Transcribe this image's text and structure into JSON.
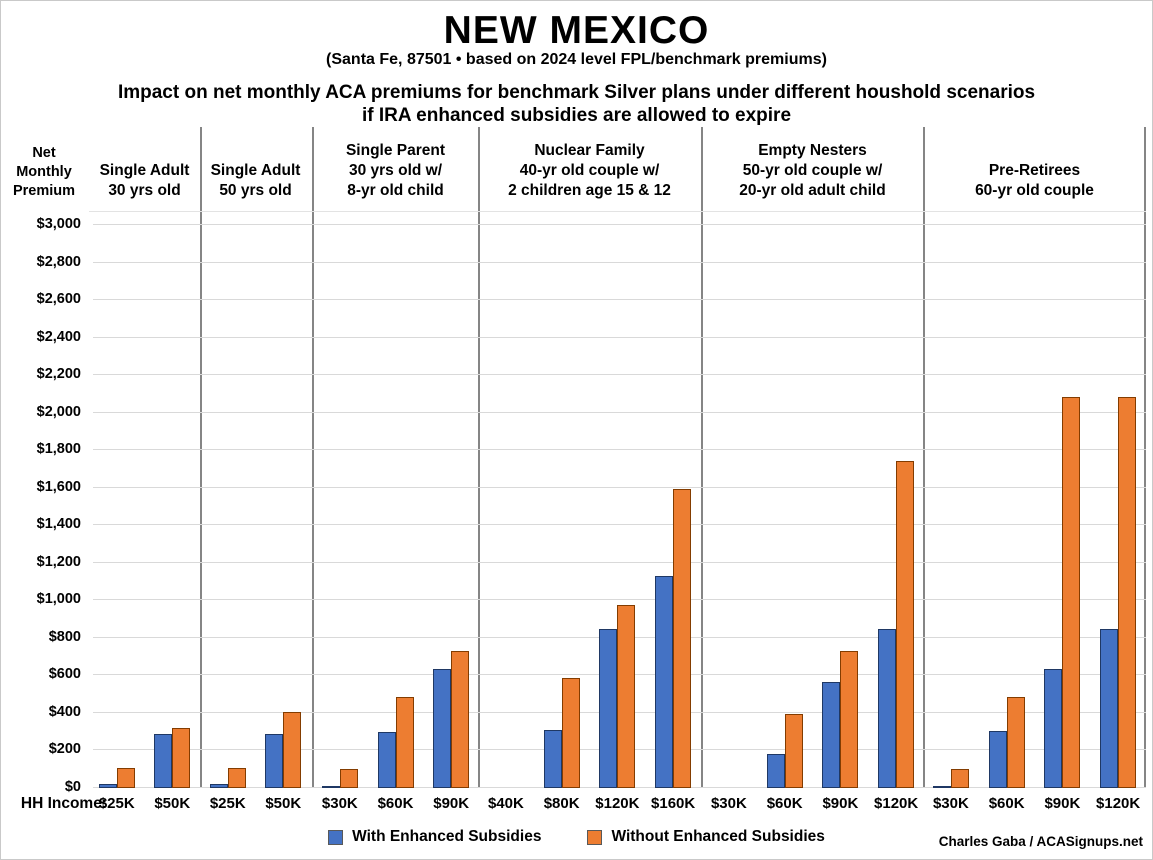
{
  "header": {
    "title": "NEW MEXICO",
    "subtitle": "(Santa Fe, 87501 • based on 2024 level FPL/benchmark premiums)",
    "heading_line1": "Impact on net monthly ACA premiums for benchmark Silver plans under different houshold scenarios",
    "heading_line2": "if IRA enhanced subsidies are allowed to expire"
  },
  "y_axis": {
    "label": "Net\nMonthly\nPremium",
    "tick_prefix": "$"
  },
  "footer": {
    "hh_income_label": "HH Income:",
    "credit": "Charles Gaba / ACASignups.net"
  },
  "legend": {
    "items": [
      {
        "name": "with-enhanced-subsidies",
        "label": "With Enhanced Subsidies",
        "color": "#4472C4",
        "border": "#1F3864"
      },
      {
        "name": "without-enhanced-subsidies",
        "label": "Without Enhanced Subsidies",
        "color": "#ED7D31",
        "border": "#833C00"
      }
    ]
  },
  "colors": {
    "gridline": "#d9d9d9",
    "divider": "#858585",
    "text": "#000000",
    "background": "#ffffff"
  },
  "chart_data": {
    "type": "bar",
    "title": "Impact on net monthly ACA premiums for benchmark Silver plans under different houshold scenarios if IRA enhanced subsidies are allowed to expire",
    "region": "NEW MEXICO (Santa Fe, 87501)",
    "ylabel": "Net Monthly Premium",
    "xlabel": "HH Income",
    "ylim": [
      0,
      3000
    ],
    "ytick_step": 200,
    "grid": true,
    "legend_position": "bottom",
    "series_names": [
      "With Enhanced Subsidies",
      "Without Enhanced Subsidies"
    ],
    "groups": [
      {
        "label": "Single Adult\n30 yrs old",
        "categories": [
          "$25K",
          "$50K"
        ],
        "with": [
          20,
          290
        ],
        "without": [
          105,
          320
        ]
      },
      {
        "label": "Single Adult\n50 yrs old",
        "categories": [
          "$25K",
          "$50K"
        ],
        "with": [
          20,
          290
        ],
        "without": [
          105,
          405
        ]
      },
      {
        "label": "Single Parent\n30 yrs old w/\n8-yr old child",
        "categories": [
          "$30K",
          "$60K",
          "$90K"
        ],
        "with": [
          5,
          300,
          635
        ],
        "without": [
          100,
          485,
          730
        ]
      },
      {
        "label": "Nuclear Family\n40-yr old couple w/\n2 children age 15 & 12",
        "categories": [
          "$40K",
          "$80K",
          "$120K",
          "$160K"
        ],
        "with": [
          0,
          310,
          845,
          1130
        ],
        "without": [
          0,
          585,
          975,
          1595
        ]
      },
      {
        "label": "Empty Nesters\n50-yr old couple w/\n20-yr old adult child",
        "categories": [
          "$30K",
          "$60K",
          "$90K",
          "$120K"
        ],
        "with": [
          0,
          180,
          565,
          845
        ],
        "without": [
          0,
          395,
          730,
          1745
        ]
      },
      {
        "label": "Pre-Retirees\n60-yr old couple",
        "categories": [
          "$30K",
          "$60K",
          "$90K",
          "$120K"
        ],
        "with": [
          5,
          305,
          635,
          845
        ],
        "without": [
          100,
          485,
          2085,
          2085
        ]
      }
    ]
  }
}
